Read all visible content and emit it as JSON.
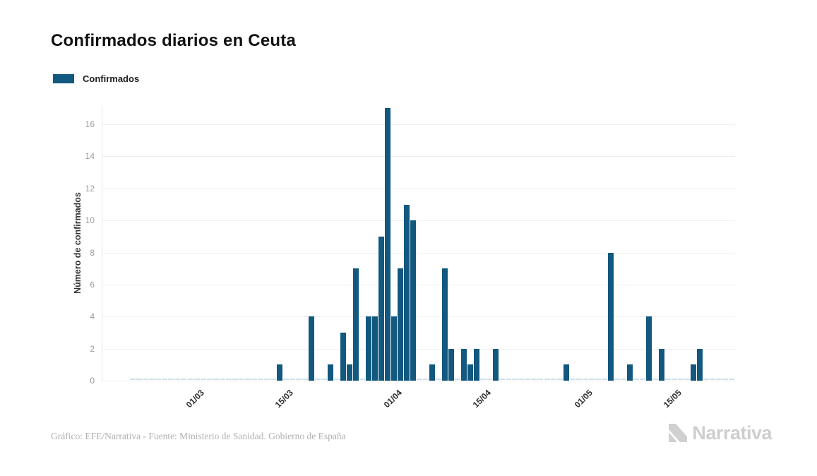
{
  "page": {
    "title": "Confirmados diarios en Ceuta",
    "footer": "Gráfico: EFE/Narrativa - Fuente: Ministerio de Sanidad. Gobierno de España",
    "brand": "Narrativa"
  },
  "legend": {
    "label": "Confirmados"
  },
  "colors": {
    "bar": "#12587F",
    "bar_zero": "#CFE0EA",
    "grid": "#EFEFEF",
    "axis_line": "#E9E9E9",
    "y_tick_label": "#9B9B9B",
    "x_tick_label": "#2D2D2D",
    "title": "#111111",
    "footer": "#B0B0B0",
    "brand": "#CECECE"
  },
  "chart_data": {
    "type": "bar",
    "title": "Confirmados diarios en Ceuta",
    "series_name": "Confirmados",
    "xlabel": "",
    "ylabel": "Número de confirmados",
    "ylim": [
      0,
      17
    ],
    "yticks": [
      0,
      2,
      4,
      6,
      8,
      10,
      12,
      14,
      16
    ],
    "grid": "horizontal",
    "legend_position": "top-left",
    "x_tick_labels": [
      "01/03",
      "15/03",
      "01/04",
      "15/04",
      "01/05",
      "15/05"
    ],
    "x_tick_day_index": [
      9,
      23,
      40,
      54,
      70,
      84
    ],
    "x": [
      "21/02",
      "22/02",
      "23/02",
      "24/02",
      "25/02",
      "26/02",
      "27/02",
      "28/02",
      "29/02",
      "01/03",
      "02/03",
      "03/03",
      "04/03",
      "05/03",
      "06/03",
      "07/03",
      "08/03",
      "09/03",
      "10/03",
      "11/03",
      "12/03",
      "13/03",
      "14/03",
      "15/03",
      "16/03",
      "17/03",
      "18/03",
      "19/03",
      "20/03",
      "21/03",
      "22/03",
      "23/03",
      "24/03",
      "25/03",
      "26/03",
      "27/03",
      "28/03",
      "29/03",
      "30/03",
      "31/03",
      "01/04",
      "02/04",
      "03/04",
      "04/04",
      "05/04",
      "06/04",
      "07/04",
      "08/04",
      "09/04",
      "10/04",
      "11/04",
      "12/04",
      "13/04",
      "14/04",
      "15/04",
      "16/04",
      "17/04",
      "18/04",
      "19/04",
      "20/04",
      "21/04",
      "22/04",
      "23/04",
      "24/04",
      "25/04",
      "26/04",
      "27/04",
      "28/04",
      "29/04",
      "30/04",
      "01/05",
      "02/05",
      "03/05",
      "04/05",
      "05/05",
      "06/05",
      "07/05",
      "08/05",
      "09/05",
      "10/05",
      "11/05",
      "12/05",
      "13/05",
      "14/05",
      "15/05",
      "16/05",
      "17/05",
      "18/05",
      "19/05",
      "20/05",
      "21/05",
      "22/05",
      "23/05",
      "24/05",
      "25/05"
    ],
    "values": [
      0,
      0,
      0,
      0,
      0,
      0,
      0,
      0,
      0,
      0,
      0,
      0,
      0,
      0,
      0,
      0,
      0,
      0,
      0,
      0,
      0,
      0,
      0,
      1,
      0,
      0,
      0,
      0,
      4,
      0,
      0,
      1,
      0,
      3,
      1,
      7,
      0,
      4,
      4,
      9,
      17,
      4,
      7,
      11,
      10,
      0,
      0,
      1,
      0,
      7,
      2,
      0,
      2,
      1,
      2,
      0,
      0,
      2,
      0,
      0,
      0,
      0,
      0,
      0,
      0,
      0,
      0,
      0,
      1,
      0,
      0,
      0,
      0,
      0,
      0,
      8,
      0,
      0,
      1,
      0,
      0,
      4,
      0,
      2,
      0,
      0,
      0,
      0,
      1,
      2,
      0,
      0,
      0,
      0,
      0
    ]
  }
}
